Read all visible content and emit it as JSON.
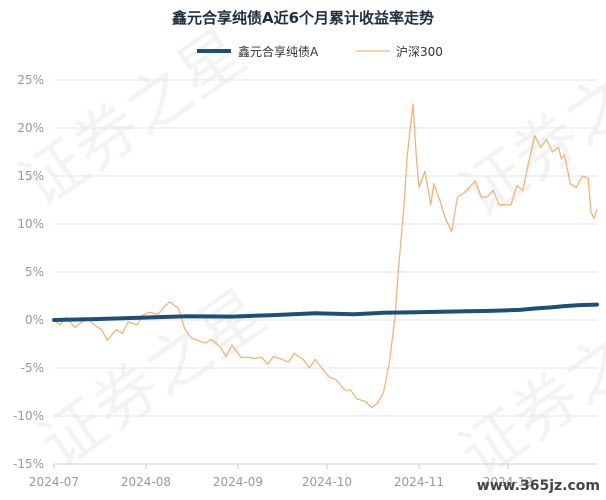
{
  "chart_data": {
    "type": "line",
    "title": "鑫元合享纯债A近6个月累计收益率走势",
    "xlabel": "",
    "ylabel": "",
    "ylim": [
      -15,
      25
    ],
    "yticks": [
      25,
      20,
      15,
      10,
      5,
      0,
      -5,
      -10,
      -15
    ],
    "ytick_labels": [
      "25%",
      "20%",
      "15%",
      "10%",
      "5%",
      "0%",
      "-5%",
      "-10%",
      "-15%"
    ],
    "x_start": "2024-07-01",
    "x_end": "2024-12-31",
    "xtick_labels": [
      "2024-07",
      "2024-08",
      "2024-09",
      "2024-10",
      "2024-11",
      "2024-12"
    ],
    "grid": true,
    "legend": "top-center",
    "colors": {
      "fund": "#1f4e79",
      "index": "#f5b37a",
      "grid": "#e6e6e6",
      "axis": "#cccccc"
    },
    "series": [
      {
        "name": "鑫元合享纯债A",
        "color": "#1f4e79",
        "points": [
          [
            "2024-07-01",
            0.0
          ],
          [
            "2024-07-16",
            0.1
          ],
          [
            "2024-07-31",
            0.25
          ],
          [
            "2024-08-15",
            0.4
          ],
          [
            "2024-08-30",
            0.35
          ],
          [
            "2024-09-12",
            0.5
          ],
          [
            "2024-09-27",
            0.7
          ],
          [
            "2024-10-10",
            0.6
          ],
          [
            "2024-10-20",
            0.75
          ],
          [
            "2024-10-31",
            0.8
          ],
          [
            "2024-11-15",
            0.9
          ],
          [
            "2024-11-25",
            0.95
          ],
          [
            "2024-12-05",
            1.05
          ],
          [
            "2024-12-10",
            1.2
          ],
          [
            "2024-12-15",
            1.3
          ],
          [
            "2024-12-20",
            1.45
          ],
          [
            "2024-12-25",
            1.55
          ],
          [
            "2024-12-31",
            1.6
          ]
        ]
      },
      {
        "name": "沪深300",
        "color": "#f5b37a",
        "points": [
          [
            "2024-07-01",
            0.0
          ],
          [
            "2024-07-03",
            -0.5
          ],
          [
            "2024-07-05",
            0.3
          ],
          [
            "2024-07-08",
            -0.8
          ],
          [
            "2024-07-10",
            -0.3
          ],
          [
            "2024-07-12",
            0.2
          ],
          [
            "2024-07-15",
            -0.6
          ],
          [
            "2024-07-17",
            -1.0
          ],
          [
            "2024-07-19",
            -2.1
          ],
          [
            "2024-07-22",
            -1.0
          ],
          [
            "2024-07-24",
            -1.4
          ],
          [
            "2024-07-26",
            -0.2
          ],
          [
            "2024-07-29",
            -0.5
          ],
          [
            "2024-07-31",
            0.5
          ],
          [
            "2024-08-02",
            0.8
          ],
          [
            "2024-08-05",
            0.6
          ],
          [
            "2024-08-07",
            1.3
          ],
          [
            "2024-08-09",
            1.9
          ],
          [
            "2024-08-12",
            1.2
          ],
          [
            "2024-08-14",
            -0.9
          ],
          [
            "2024-08-16",
            -1.8
          ],
          [
            "2024-08-19",
            -2.2
          ],
          [
            "2024-08-21",
            -2.4
          ],
          [
            "2024-08-23",
            -2.0
          ],
          [
            "2024-08-26",
            -2.8
          ],
          [
            "2024-08-28",
            -3.8
          ],
          [
            "2024-08-30",
            -2.6
          ],
          [
            "2024-09-02",
            -3.9
          ],
          [
            "2024-09-05",
            -3.9
          ],
          [
            "2024-09-06",
            -4.0
          ],
          [
            "2024-09-09",
            -3.9
          ],
          [
            "2024-09-11",
            -4.6
          ],
          [
            "2024-09-13",
            -3.8
          ],
          [
            "2024-09-16",
            -4.1
          ],
          [
            "2024-09-18",
            -4.4
          ],
          [
            "2024-09-20",
            -3.5
          ],
          [
            "2024-09-23",
            -4.1
          ],
          [
            "2024-09-25",
            -5.0
          ],
          [
            "2024-09-27",
            -4.1
          ],
          [
            "2024-09-30",
            -5.3
          ],
          [
            "2024-10-02",
            -6.0
          ],
          [
            "2024-10-04",
            -6.2
          ],
          [
            "2024-10-07",
            -7.3
          ],
          [
            "2024-10-09",
            -7.3
          ],
          [
            "2024-10-11",
            -8.2
          ],
          [
            "2024-10-14",
            -8.5
          ],
          [
            "2024-10-16",
            -9.1
          ],
          [
            "2024-10-18",
            -8.7
          ],
          [
            "2024-10-20",
            -7.6
          ],
          [
            "2024-10-22",
            -4.5
          ],
          [
            "2024-10-24",
            0.5
          ],
          [
            "2024-10-25",
            5.0
          ],
          [
            "2024-10-27",
            12.0
          ],
          [
            "2024-10-28",
            17.0
          ],
          [
            "2024-10-30",
            22.5
          ],
          [
            "2024-10-31",
            17.5
          ],
          [
            "2024-11-01",
            13.8
          ],
          [
            "2024-11-03",
            15.5
          ],
          [
            "2024-11-05",
            12.0
          ],
          [
            "2024-11-06",
            14.2
          ],
          [
            "2024-11-08",
            12.5
          ],
          [
            "2024-11-10",
            10.5
          ],
          [
            "2024-11-12",
            9.2
          ],
          [
            "2024-11-14",
            12.8
          ],
          [
            "2024-11-16",
            13.2
          ],
          [
            "2024-11-18",
            13.8
          ],
          [
            "2024-11-20",
            14.5
          ],
          [
            "2024-11-22",
            12.8
          ],
          [
            "2024-11-24",
            12.8
          ],
          [
            "2024-11-26",
            13.5
          ],
          [
            "2024-11-28",
            12.0
          ],
          [
            "2024-11-30",
            12.0
          ],
          [
            "2024-12-02",
            12.0
          ],
          [
            "2024-12-04",
            14.0
          ],
          [
            "2024-12-06",
            13.5
          ],
          [
            "2024-12-08",
            16.5
          ],
          [
            "2024-12-10",
            19.2
          ],
          [
            "2024-12-12",
            18.0
          ],
          [
            "2024-12-14",
            18.8
          ],
          [
            "2024-12-16",
            17.5
          ],
          [
            "2024-12-18",
            18.0
          ],
          [
            "2024-12-19",
            16.8
          ],
          [
            "2024-12-20",
            17.2
          ],
          [
            "2024-12-22",
            14.2
          ],
          [
            "2024-12-24",
            13.8
          ],
          [
            "2024-12-26",
            15.0
          ],
          [
            "2024-12-28",
            14.8
          ],
          [
            "2024-12-29",
            11.2
          ],
          [
            "2024-12-30",
            10.6
          ],
          [
            "2024-12-31",
            11.5
          ]
        ]
      }
    ]
  },
  "watermark": {
    "text": "证券之星"
  },
  "site": {
    "text": "www.365jz.com"
  }
}
